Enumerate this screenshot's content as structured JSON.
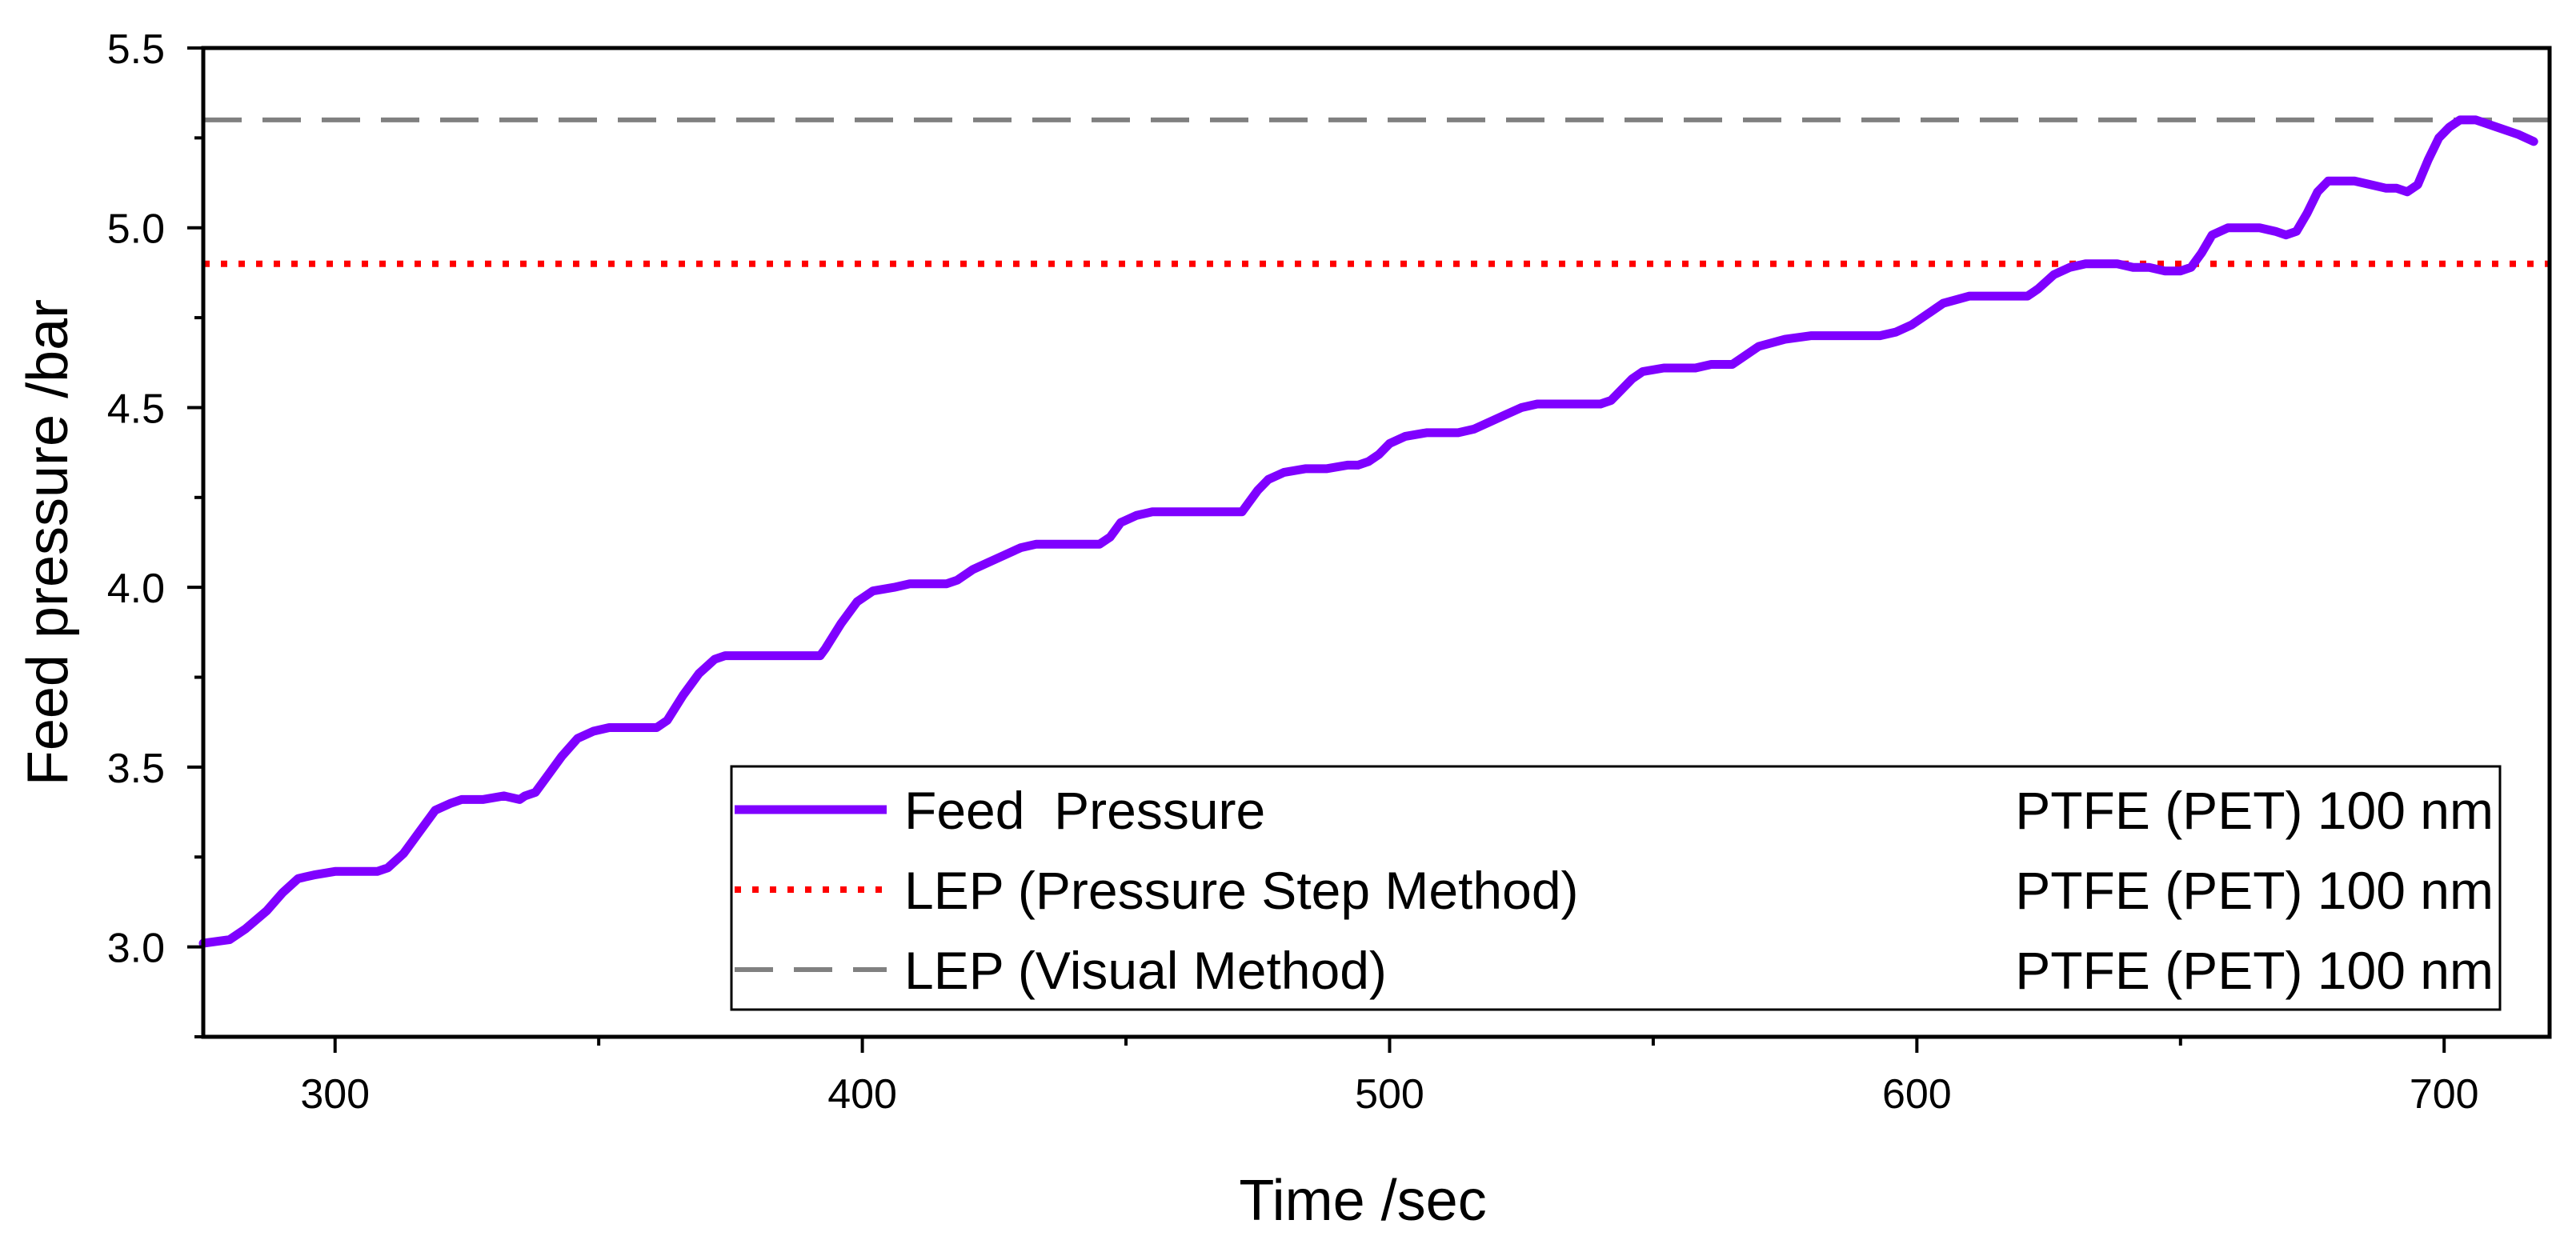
{
  "chart_data": {
    "type": "line",
    "xlabel": "Time /sec",
    "ylabel": "Feed pressure /bar",
    "xlim": [
      275,
      720
    ],
    "ylim": [
      2.75,
      5.5
    ],
    "x_ticks": [
      300,
      400,
      500,
      600,
      700
    ],
    "x_tick_labels": [
      "300",
      "400",
      "500",
      "600",
      "700"
    ],
    "y_ticks": [
      3.0,
      3.5,
      4.0,
      4.5,
      5.0,
      5.5
    ],
    "y_tick_labels": [
      "3.0",
      "3.5",
      "4.0",
      "4.5",
      "5.0",
      "5.5"
    ],
    "legend_position": "bottom-right",
    "colors": {
      "feed": "#7f00ff",
      "step": "#ff0000",
      "visual": "#808080"
    },
    "series": [
      {
        "name": "Feed  Pressure",
        "sample": "PTFE (PET) 100 nm",
        "style": "solid",
        "x": [
          275,
          280,
          283,
          287,
          290,
          293,
          296,
          300,
          305,
          308,
          310,
          313,
          316,
          319,
          322,
          324,
          328,
          332,
          335,
          336,
          338,
          340,
          343,
          346,
          349,
          352,
          355,
          358,
          361,
          363,
          366,
          369,
          372,
          374,
          376,
          380,
          384,
          388,
          392,
          393,
          396,
          399,
          402,
          406,
          409,
          412,
          416,
          418,
          421,
          424,
          427,
          430,
          433,
          436,
          439,
          442,
          445,
          447,
          449,
          452,
          455,
          458,
          460,
          464,
          468,
          470,
          472,
          473,
          475,
          477,
          480,
          484,
          488,
          492,
          494,
          496,
          498,
          500,
          503,
          507,
          510,
          513,
          516,
          519,
          522,
          525,
          528,
          531,
          534,
          537,
          540,
          542,
          544,
          546,
          548,
          552,
          555,
          558,
          561,
          563,
          565,
          567,
          570,
          575,
          580,
          585,
          590,
          593,
          596,
          599,
          602,
          605,
          610,
          615,
          620,
          621,
          623,
          626,
          629,
          632,
          635,
          638,
          641,
          644,
          647,
          650,
          652,
          654,
          656,
          659,
          662,
          665,
          668,
          670,
          672,
          674,
          676,
          678,
          680,
          683,
          686,
          689,
          691,
          693,
          695,
          697,
          699,
          701,
          703,
          706,
          710,
          714,
          717
        ],
        "y": [
          3.01,
          3.02,
          3.05,
          3.1,
          3.15,
          3.19,
          3.2,
          3.21,
          3.21,
          3.21,
          3.22,
          3.26,
          3.32,
          3.38,
          3.4,
          3.41,
          3.41,
          3.42,
          3.41,
          3.42,
          3.43,
          3.47,
          3.53,
          3.58,
          3.6,
          3.61,
          3.61,
          3.61,
          3.61,
          3.63,
          3.7,
          3.76,
          3.8,
          3.81,
          3.81,
          3.81,
          3.81,
          3.81,
          3.81,
          3.83,
          3.9,
          3.96,
          3.99,
          4.0,
          4.01,
          4.01,
          4.01,
          4.02,
          4.05,
          4.07,
          4.09,
          4.11,
          4.12,
          4.12,
          4.12,
          4.12,
          4.12,
          4.14,
          4.18,
          4.2,
          4.21,
          4.21,
          4.21,
          4.21,
          4.21,
          4.21,
          4.21,
          4.23,
          4.27,
          4.3,
          4.32,
          4.33,
          4.33,
          4.34,
          4.34,
          4.35,
          4.37,
          4.4,
          4.42,
          4.43,
          4.43,
          4.43,
          4.44,
          4.46,
          4.48,
          4.5,
          4.51,
          4.51,
          4.51,
          4.51,
          4.51,
          4.52,
          4.55,
          4.58,
          4.6,
          4.61,
          4.61,
          4.61,
          4.62,
          4.62,
          4.62,
          4.64,
          4.67,
          4.69,
          4.7,
          4.7,
          4.7,
          4.7,
          4.71,
          4.73,
          4.76,
          4.79,
          4.81,
          4.81,
          4.81,
          4.81,
          4.83,
          4.87,
          4.89,
          4.9,
          4.9,
          4.9,
          4.89,
          4.89,
          4.88,
          4.88,
          4.89,
          4.93,
          4.98,
          5.0,
          5.0,
          5.0,
          4.99,
          4.98,
          4.99,
          5.04,
          5.1,
          5.13,
          5.13,
          5.13,
          5.12,
          5.11,
          5.11,
          5.1,
          5.12,
          5.19,
          5.25,
          5.28,
          5.3,
          5.3,
          5.28,
          5.26,
          5.24
        ]
      },
      {
        "name": "LEP (Pressure Step Method)",
        "sample": "PTFE (PET) 100 nm",
        "style": "dotted",
        "x": [
          275,
          720
        ],
        "y": [
          4.9,
          4.9
        ]
      },
      {
        "name": "LEP (Visual Method)",
        "sample": "PTFE (PET) 100 nm",
        "style": "dashed",
        "x": [
          275,
          720
        ],
        "y": [
          5.3,
          5.3
        ]
      }
    ]
  }
}
